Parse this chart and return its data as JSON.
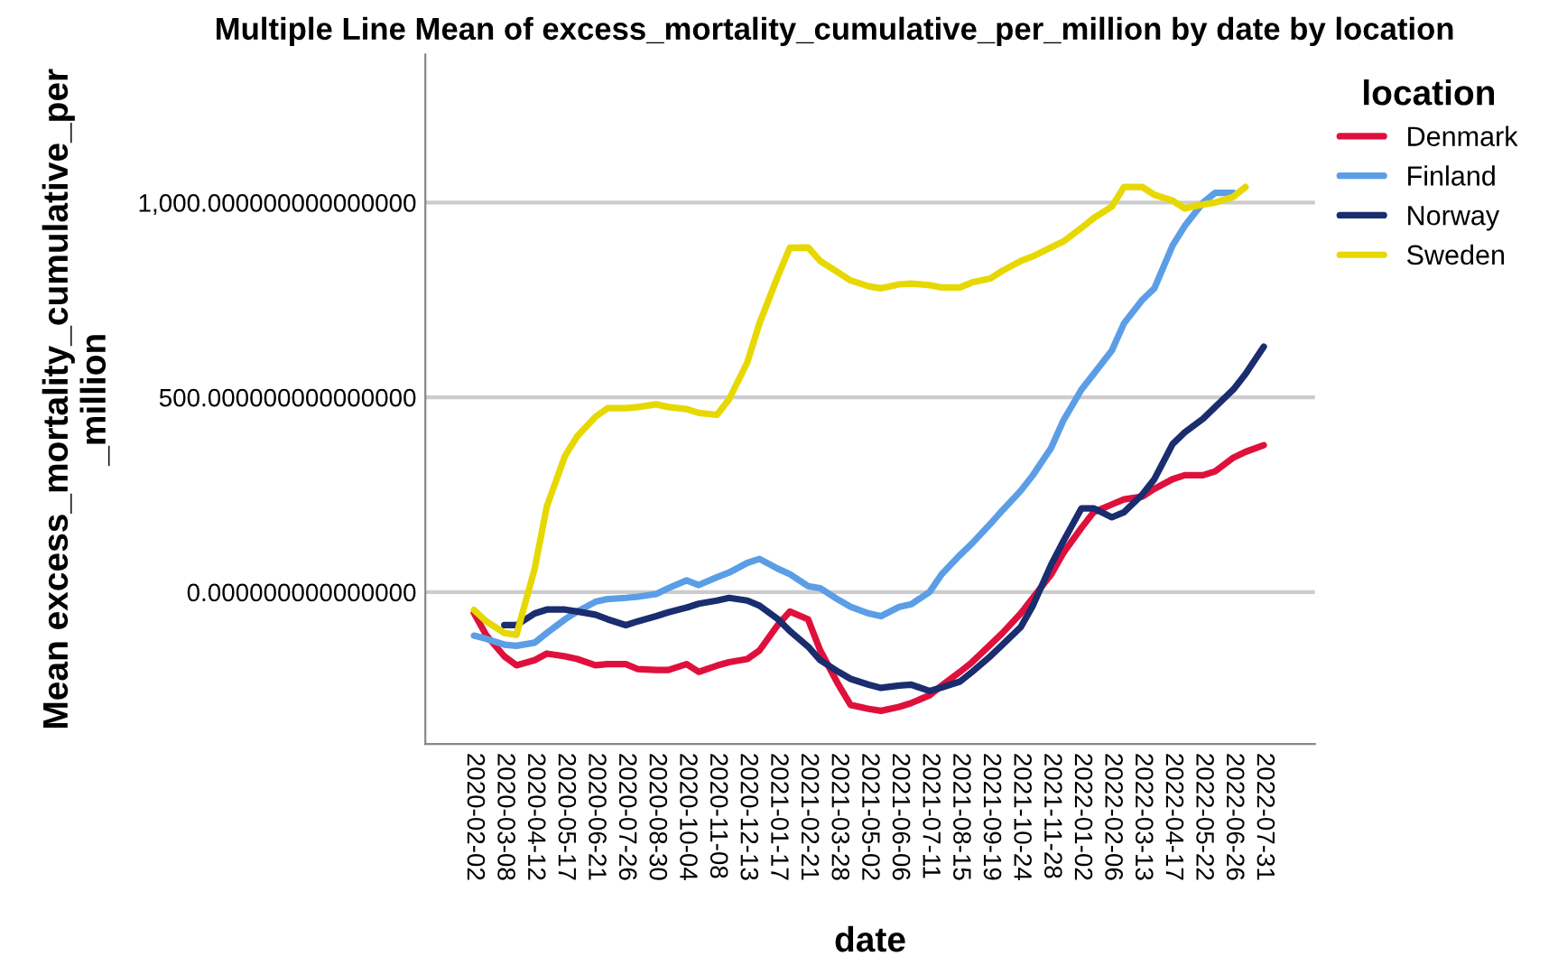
{
  "chart_data": {
    "type": "line",
    "title": "Multiple Line Mean of excess_mortality_cumulative_per_million by date by location",
    "xlabel": "date",
    "ylabel": "Mean excess_mortality_cumulative_per\n_million",
    "legend_title": "location",
    "x": [
      "2020-02-02",
      "2020-02-16",
      "2020-03-08",
      "2020-03-22",
      "2020-04-12",
      "2020-04-26",
      "2020-05-17",
      "2020-05-31",
      "2020-06-21",
      "2020-07-05",
      "2020-07-26",
      "2020-08-09",
      "2020-08-30",
      "2020-09-13",
      "2020-10-04",
      "2020-10-18",
      "2020-11-08",
      "2020-11-22",
      "2020-12-13",
      "2020-12-27",
      "2021-01-17",
      "2021-01-31",
      "2021-02-21",
      "2021-03-07",
      "2021-03-28",
      "2021-04-11",
      "2021-05-02",
      "2021-05-16",
      "2021-06-06",
      "2021-06-20",
      "2021-07-11",
      "2021-07-25",
      "2021-08-15",
      "2021-08-29",
      "2021-09-19",
      "2021-10-03",
      "2021-10-24",
      "2021-11-07",
      "2021-11-28",
      "2021-12-12",
      "2022-01-02",
      "2022-01-16",
      "2022-02-06",
      "2022-02-20",
      "2022-03-13",
      "2022-03-27",
      "2022-04-17",
      "2022-05-01",
      "2022-05-22",
      "2022-06-05",
      "2022-06-26",
      "2022-07-10",
      "2022-07-31"
    ],
    "series": [
      {
        "name": "Denmark",
        "color": "#e0103c",
        "values": [
          -54,
          -110,
          -165,
          -188,
          -175,
          -158,
          -165,
          -172,
          -188,
          -185,
          -185,
          -198,
          -200,
          -200,
          -185,
          -205,
          -189,
          -180,
          -172,
          -150,
          -85,
          -50,
          -70,
          -150,
          -238,
          -290,
          -300,
          -305,
          -295,
          -285,
          -265,
          -240,
          -205,
          -180,
          -135,
          -105,
          -55,
          -15,
          45,
          100,
          165,
          205,
          225,
          238,
          245,
          265,
          290,
          300,
          300,
          310,
          345,
          360,
          377
        ]
      },
      {
        "name": "Finland",
        "color": "#5b9ee6",
        "values": [
          -112,
          -120,
          -135,
          -138,
          -130,
          -105,
          -70,
          -50,
          -25,
          -18,
          -15,
          -12,
          -5,
          10,
          30,
          18,
          38,
          50,
          75,
          85,
          60,
          46,
          15,
          10,
          -20,
          -38,
          -55,
          -62,
          -38,
          -31,
          0,
          46,
          95,
          125,
          175,
          210,
          260,
          300,
          370,
          440,
          520,
          560,
          620,
          690,
          750,
          780,
          890,
          940,
          1000,
          1025,
          1025,
          null,
          null
        ]
      },
      {
        "name": "Norway",
        "color": "#1a2d6e",
        "values": [
          null,
          null,
          -85,
          -85,
          -55,
          -45,
          -45,
          -50,
          -58,
          -70,
          -85,
          -75,
          -62,
          -52,
          -40,
          -30,
          -22,
          -15,
          -22,
          -35,
          -69,
          -100,
          -140,
          -175,
          -205,
          -223,
          -238,
          -246,
          -240,
          -238,
          -254,
          -245,
          -230,
          -205,
          -165,
          -135,
          -90,
          -35,
          70,
          130,
          215,
          215,
          192,
          205,
          250,
          290,
          380,
          410,
          445,
          475,
          520,
          560,
          630
        ]
      },
      {
        "name": "Sweden",
        "color": "#e6d800",
        "values": [
          -46,
          -75,
          -105,
          -110,
          60,
          220,
          350,
          400,
          450,
          472,
          472,
          475,
          482,
          475,
          470,
          460,
          455,
          495,
          590,
          690,
          810,
          884,
          885,
          850,
          820,
          800,
          785,
          780,
          790,
          792,
          788,
          782,
          782,
          795,
          805,
          825,
          850,
          862,
          885,
          900,
          935,
          960,
          990,
          1040,
          1040,
          1020,
          1005,
          985,
          995,
          1000,
          1015,
          1040,
          null
        ]
      }
    ],
    "xlim": [
      "2019-12-08",
      "2022-09-28"
    ],
    "xticks": [
      "2020-02-02",
      "2020-03-08",
      "2020-04-12",
      "2020-05-17",
      "2020-06-21",
      "2020-07-26",
      "2020-08-30",
      "2020-10-04",
      "2020-11-08",
      "2020-12-13",
      "2021-01-17",
      "2021-02-21",
      "2021-03-28",
      "2021-05-02",
      "2021-06-06",
      "2021-07-11",
      "2021-08-15",
      "2021-09-19",
      "2021-10-24",
      "2021-11-28",
      "2022-01-02",
      "2022-02-06",
      "2022-03-13",
      "2022-04-17",
      "2022-05-22",
      "2022-06-26",
      "2022-07-31"
    ],
    "ylim": [
      -390,
      1380
    ],
    "yticks": [
      {
        "value": 0,
        "label": "0.000000000000000"
      },
      {
        "value": 500,
        "label": "500.000000000000000"
      },
      {
        "value": 1000,
        "label": "1,000.000000000000000"
      }
    ],
    "grid": "y",
    "legend": "top right",
    "marker": "none",
    "line_style": "solid"
  }
}
